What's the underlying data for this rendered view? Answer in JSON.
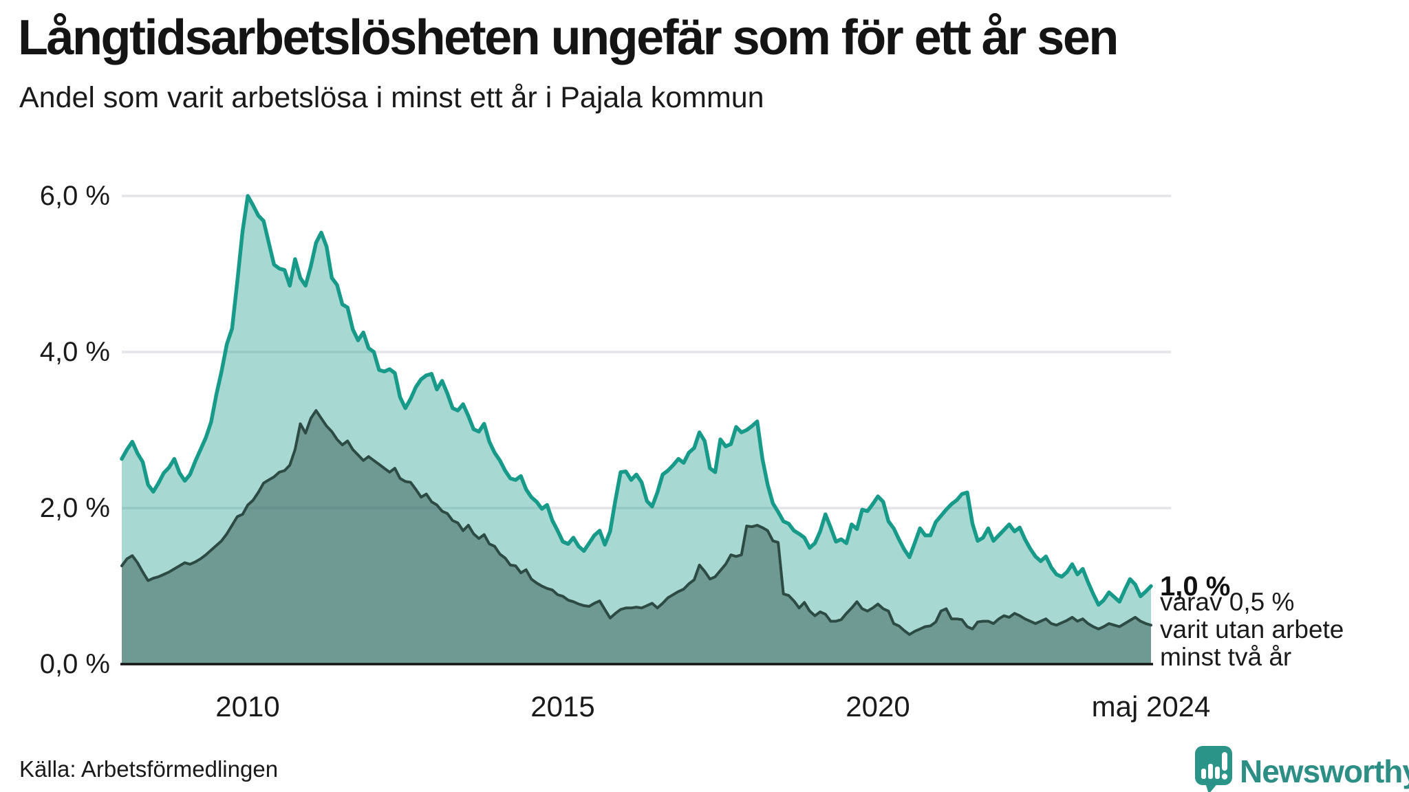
{
  "header": {
    "title": "Långtidsarbetslösheten ungefär som för ett år sen",
    "subtitle": "Andel som varit arbetslösa i minst ett år i Pajala kommun"
  },
  "chart_data": {
    "type": "area",
    "unit": "percent",
    "frequency": "monthly",
    "x_start": "jan 2008",
    "x_end": "maj 2024",
    "ylim": [
      0,
      6.3
    ],
    "grid": true,
    "colors": {
      "line_1yr": "#189a8a",
      "fill_1yr": "rgba(24,154,138,0.38)",
      "line_2yr": "#2d4a44",
      "fill_2yr": "rgba(33,66,59,0.42)",
      "gridline": "#e4e4e9",
      "baseline": "#141414"
    },
    "y_ticks": [
      {
        "label": "6,0 %",
        "value": 6
      },
      {
        "label": "4,0 %",
        "value": 4
      },
      {
        "label": "2,0 %",
        "value": 2
      },
      {
        "label": "0,0 %",
        "value": 0
      }
    ],
    "x_ticks": [
      {
        "label": "2010",
        "month_index": 24
      },
      {
        "label": "2015",
        "month_index": 84
      },
      {
        "label": "2020",
        "month_index": 144
      },
      {
        "label": "maj 2024",
        "month_index": 196
      }
    ],
    "series": [
      {
        "id": "minst-ett-ar",
        "name": "Arbetslösa minst ett år",
        "latest_value": 1.0,
        "values": [
          2.63,
          2.75,
          2.85,
          2.7,
          2.59,
          2.3,
          2.21,
          2.32,
          2.45,
          2.52,
          2.63,
          2.45,
          2.35,
          2.43,
          2.6,
          2.75,
          2.9,
          3.1,
          3.45,
          3.75,
          4.1,
          4.3,
          4.9,
          5.55,
          6.0,
          5.88,
          5.75,
          5.68,
          5.4,
          5.12,
          5.07,
          5.05,
          4.85,
          5.19,
          4.95,
          4.85,
          5.1,
          5.4,
          5.53,
          5.35,
          4.95,
          4.86,
          4.61,
          4.57,
          4.29,
          4.15,
          4.25,
          4.05,
          4.0,
          3.77,
          3.75,
          3.78,
          3.73,
          3.42,
          3.28,
          3.4,
          3.55,
          3.65,
          3.7,
          3.72,
          3.52,
          3.63,
          3.47,
          3.28,
          3.25,
          3.33,
          3.18,
          3.01,
          2.98,
          3.08,
          2.85,
          2.71,
          2.61,
          2.48,
          2.38,
          2.36,
          2.41,
          2.24,
          2.14,
          2.08,
          1.99,
          2.04,
          1.84,
          1.71,
          1.57,
          1.54,
          1.62,
          1.51,
          1.45,
          1.55,
          1.65,
          1.71,
          1.53,
          1.7,
          2.1,
          2.46,
          2.47,
          2.36,
          2.43,
          2.33,
          2.09,
          2.02,
          2.2,
          2.43,
          2.48,
          2.55,
          2.63,
          2.58,
          2.71,
          2.77,
          2.97,
          2.86,
          2.51,
          2.46,
          2.88,
          2.79,
          2.82,
          3.04,
          2.97,
          3.0,
          3.05,
          3.11,
          2.63,
          2.3,
          2.06,
          1.95,
          1.83,
          1.8,
          1.71,
          1.67,
          1.62,
          1.49,
          1.55,
          1.7,
          1.92,
          1.75,
          1.57,
          1.6,
          1.55,
          1.79,
          1.73,
          1.98,
          1.96,
          2.05,
          2.15,
          2.08,
          1.83,
          1.74,
          1.6,
          1.47,
          1.37,
          1.55,
          1.74,
          1.65,
          1.65,
          1.82,
          1.9,
          1.98,
          2.05,
          2.1,
          2.18,
          2.2,
          1.8,
          1.58,
          1.62,
          1.74,
          1.58,
          1.65,
          1.72,
          1.79,
          1.7,
          1.75,
          1.6,
          1.48,
          1.38,
          1.32,
          1.38,
          1.24,
          1.15,
          1.12,
          1.18,
          1.28,
          1.15,
          1.22,
          1.05,
          0.9,
          0.76,
          0.82,
          0.92,
          0.86,
          0.8,
          0.95,
          1.09,
          1.02,
          0.87,
          0.93,
          1.0
        ]
      },
      {
        "id": "minst-tva-ar",
        "name": "Arbetslösa minst två år",
        "latest_value": 0.5,
        "values": [
          1.26,
          1.35,
          1.39,
          1.3,
          1.18,
          1.07,
          1.1,
          1.12,
          1.15,
          1.18,
          1.22,
          1.26,
          1.3,
          1.28,
          1.31,
          1.35,
          1.4,
          1.46,
          1.52,
          1.58,
          1.67,
          1.78,
          1.89,
          1.92,
          2.04,
          2.1,
          2.2,
          2.32,
          2.36,
          2.4,
          2.46,
          2.48,
          2.55,
          2.75,
          3.08,
          2.96,
          3.15,
          3.25,
          3.15,
          3.05,
          2.98,
          2.88,
          2.81,
          2.86,
          2.75,
          2.68,
          2.61,
          2.66,
          2.61,
          2.56,
          2.51,
          2.46,
          2.51,
          2.38,
          2.34,
          2.33,
          2.24,
          2.14,
          2.18,
          2.08,
          2.04,
          1.96,
          1.93,
          1.84,
          1.81,
          1.71,
          1.78,
          1.67,
          1.61,
          1.66,
          1.54,
          1.51,
          1.41,
          1.36,
          1.27,
          1.26,
          1.17,
          1.21,
          1.09,
          1.04,
          1.0,
          0.97,
          0.95,
          0.89,
          0.87,
          0.82,
          0.8,
          0.77,
          0.75,
          0.74,
          0.78,
          0.81,
          0.7,
          0.59,
          0.65,
          0.7,
          0.72,
          0.72,
          0.73,
          0.72,
          0.75,
          0.78,
          0.72,
          0.78,
          0.85,
          0.89,
          0.93,
          0.96,
          1.03,
          1.08,
          1.27,
          1.19,
          1.09,
          1.12,
          1.2,
          1.28,
          1.4,
          1.38,
          1.4,
          1.77,
          1.76,
          1.78,
          1.75,
          1.71,
          1.58,
          1.56,
          0.9,
          0.88,
          0.81,
          0.72,
          0.79,
          0.68,
          0.62,
          0.67,
          0.64,
          0.55,
          0.55,
          0.57,
          0.65,
          0.72,
          0.8,
          0.71,
          0.68,
          0.72,
          0.77,
          0.71,
          0.68,
          0.52,
          0.49,
          0.43,
          0.38,
          0.42,
          0.45,
          0.48,
          0.49,
          0.54,
          0.68,
          0.71,
          0.58,
          0.58,
          0.57,
          0.48,
          0.45,
          0.54,
          0.55,
          0.55,
          0.52,
          0.58,
          0.62,
          0.6,
          0.65,
          0.62,
          0.58,
          0.55,
          0.52,
          0.55,
          0.58,
          0.52,
          0.5,
          0.53,
          0.56,
          0.6,
          0.55,
          0.58,
          0.52,
          0.48,
          0.45,
          0.48,
          0.52,
          0.5,
          0.48,
          0.52,
          0.56,
          0.6,
          0.55,
          0.52,
          0.5
        ]
      }
    ],
    "annotations": {
      "latest_value_label": "1,0 %",
      "secondary_lines": [
        "varav 0,5 %",
        "varit utan arbete",
        "minst två år"
      ]
    }
  },
  "footer": {
    "source": "Källa: Arbetsförmedlingen",
    "logo_text": "Newsworthy"
  }
}
